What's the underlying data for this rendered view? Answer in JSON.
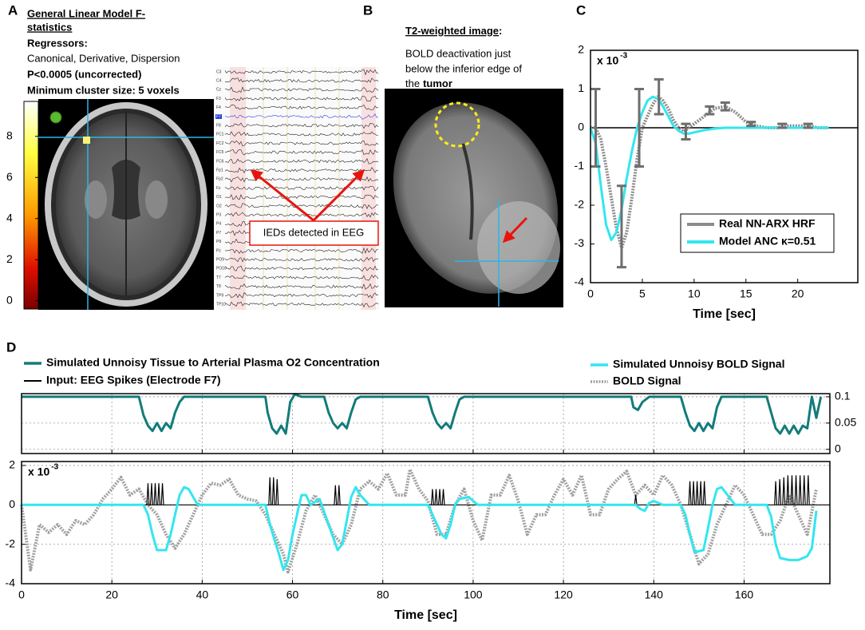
{
  "panels": {
    "A": {
      "label": "A",
      "title_lines": [
        "General Linear Model F-",
        "statistics"
      ],
      "regressors": "Regressors:",
      "regressor_list": "Canonical, Derivative, Dispersion",
      "threshold": "P<0.0005 (uncorrected)",
      "cluster": "Minimum cluster size: 5 voxels",
      "colorbar": {
        "ylim": [
          -0.4,
          9.7
        ],
        "yticks": [
          0,
          2,
          4,
          6,
          8
        ]
      },
      "eeg_channels": [
        "C3",
        "C4",
        "Cz",
        "F3",
        "F4",
        "F7",
        "F8",
        "FC1",
        "FC2",
        "FC5",
        "FC6",
        "Fp1",
        "Fp2",
        "Fz",
        "O1",
        "O2",
        "P3",
        "P4",
        "P7",
        "P8",
        "Pz",
        "PO9",
        "PO10",
        "T7",
        "T8",
        "TP9",
        "TP10"
      ],
      "annotation": "IEDs detected in EEG"
    },
    "B": {
      "label": "B",
      "title": "T2-weighted image",
      "title_suffix": ":",
      "text_lines": [
        "BOLD deactivation just",
        "below the inferior edge of"
      ],
      "last_line": "the",
      "last_bold": "tumor"
    },
    "C": {
      "label": "C"
    },
    "D": {
      "label": "D"
    }
  },
  "chart_data": [
    {
      "type": "line",
      "xlabel": "Time [sec]",
      "exponent_label": "x 10",
      "exponent": "-3",
      "xlim": [
        0,
        25.8
      ],
      "ylim": [
        -4,
        2
      ],
      "xticks": [
        0,
        5,
        10,
        15,
        20
      ],
      "yticks": [
        -4,
        -3,
        -2,
        -1,
        0,
        1,
        2
      ],
      "grid": false,
      "zero_line": true,
      "legend": "lower right",
      "x": [
        0,
        0.5,
        1,
        1.5,
        2,
        2.5,
        3,
        3.5,
        4,
        4.5,
        5,
        5.5,
        6,
        6.5,
        7,
        7.5,
        8,
        8.5,
        9,
        9.5,
        10,
        11,
        12,
        13,
        14,
        15,
        16,
        17,
        18,
        19,
        20,
        21,
        22,
        23
      ],
      "series": [
        {
          "name": "Real NN-ARX HRF",
          "color": "#8c8c8c",
          "style": "dotted",
          "values": [
            0,
            0,
            -0.3,
            -1,
            -1.8,
            -2.6,
            -3.1,
            -2.7,
            -1.8,
            -0.8,
            0,
            0.3,
            0.6,
            0.8,
            0.7,
            0.5,
            0.2,
            0,
            -0.1,
            0,
            0.1,
            0.3,
            0.5,
            0.55,
            0.4,
            0.15,
            0.05,
            0,
            0,
            0.05,
            0.05,
            0.05,
            0,
            0
          ]
        },
        {
          "name": "Model ANC  κ=0.51",
          "color": "#33e6ef",
          "style": "solid",
          "values": [
            0,
            -0.4,
            -1.5,
            -2.5,
            -2.9,
            -2.7,
            -2.1,
            -1.3,
            -0.6,
            0,
            0.4,
            0.7,
            0.8,
            0.75,
            0.55,
            0.3,
            0.05,
            -0.08,
            -0.15,
            -0.15,
            -0.12,
            -0.06,
            -0.02,
            0,
            0,
            0,
            0,
            0,
            0,
            0,
            0,
            0,
            0,
            0
          ]
        }
      ],
      "error_bars": {
        "color": "#6e6e6e",
        "x": [
          0.5,
          3,
          4.7,
          6.6,
          9.2,
          11.5,
          13,
          15.5,
          18.5,
          21
        ],
        "values": [
          0,
          -2.55,
          0,
          0.8,
          -0.1,
          0.45,
          0.55,
          0.1,
          0.05,
          0.05
        ],
        "errors": [
          1,
          1.05,
          1,
          0.45,
          0.2,
          0.1,
          0.1,
          0.05,
          0.05,
          0.05
        ]
      }
    },
    {
      "type": "line",
      "xlim": [
        0,
        179
      ],
      "ylim": [
        -0.008,
        0.106
      ],
      "xticks": [
        0,
        20,
        40,
        60,
        80,
        100,
        120,
        140,
        160
      ],
      "yticks": [
        0,
        0.05,
        0.1
      ],
      "yaxis_side": "right",
      "xtick_labels": false,
      "grid": true,
      "series": [
        {
          "name": "Simulated Unnoisy Tissue to Arterial Plasma O2 Concentration",
          "color": "#137b7b",
          "style": "solid",
          "x": [
            0,
            26,
            27,
            28,
            29,
            30,
            31,
            32,
            33,
            34,
            35,
            36,
            54,
            54.5,
            55.5,
            56.5,
            57.5,
            58.5,
            59.5,
            60.5,
            62,
            67,
            68,
            69,
            70,
            71,
            72,
            73,
            74,
            75,
            90,
            91,
            92,
            93,
            94,
            95,
            96,
            97,
            98,
            135,
            135.5,
            136.5,
            137.5,
            139,
            146,
            147,
            148,
            149,
            150,
            151,
            152,
            153,
            154,
            155,
            165,
            166,
            167,
            168,
            169,
            170,
            171,
            172,
            173,
            174,
            175,
            176,
            177
          ],
          "values": [
            0.1,
            0.1,
            0.065,
            0.045,
            0.035,
            0.05,
            0.035,
            0.05,
            0.04,
            0.07,
            0.09,
            0.1,
            0.1,
            0.07,
            0.04,
            0.03,
            0.045,
            0.03,
            0.09,
            0.105,
            0.1,
            0.1,
            0.07,
            0.05,
            0.04,
            0.05,
            0.04,
            0.07,
            0.095,
            0.1,
            0.1,
            0.07,
            0.05,
            0.04,
            0.05,
            0.04,
            0.07,
            0.095,
            0.1,
            0.1,
            0.08,
            0.075,
            0.09,
            0.1,
            0.1,
            0.07,
            0.045,
            0.035,
            0.05,
            0.035,
            0.05,
            0.04,
            0.08,
            0.1,
            0.1,
            0.07,
            0.04,
            0.03,
            0.045,
            0.03,
            0.045,
            0.03,
            0.045,
            0.04,
            0.1,
            0.06,
            0.1
          ]
        }
      ]
    },
    {
      "type": "line",
      "xlabel": "Time [sec]",
      "exponent_label": "x 10",
      "exponent": "-3",
      "xlim": [
        0,
        179
      ],
      "ylim": [
        -4,
        2.2
      ],
      "xticks": [
        0,
        20,
        40,
        60,
        80,
        100,
        120,
        140,
        160
      ],
      "yticks": [
        -4,
        -2,
        0,
        2
      ],
      "grid": true,
      "series": [
        {
          "name": "BOLD Signal",
          "color": "#a0a0a0",
          "style": "dotted",
          "x": [
            0,
            2,
            4,
            6,
            8,
            10,
            12,
            14,
            16,
            18,
            20,
            22,
            24,
            26,
            28,
            30,
            32,
            34,
            36,
            38,
            40,
            42,
            44,
            46,
            48,
            50,
            52,
            54,
            56,
            58,
            59,
            61,
            63,
            65,
            67,
            69,
            71,
            73,
            75,
            77,
            79,
            81,
            83,
            85,
            86,
            88,
            90,
            92,
            94,
            96,
            98,
            100,
            102,
            104,
            106,
            108,
            110,
            112,
            114,
            116,
            118,
            120,
            122,
            124,
            126,
            128,
            130,
            132,
            134,
            136,
            138,
            140,
            142,
            144,
            146,
            148,
            150,
            152,
            154,
            156,
            158,
            160,
            162,
            164,
            166,
            168,
            170,
            172,
            174,
            176
          ],
          "values": [
            0,
            -3.3,
            -1,
            -1.4,
            -1,
            -1.5,
            -0.8,
            -1,
            -0.5,
            0.3,
            0.8,
            1.4,
            0.5,
            0.8,
            0,
            -0.5,
            -1.5,
            -2.2,
            -1.5,
            -0.5,
            0.5,
            1.1,
            1,
            1.3,
            0.5,
            0.3,
            0.2,
            -0.5,
            -1.5,
            -2.5,
            -3.4,
            -2,
            -0.3,
            0.5,
            -0.5,
            -1.5,
            -2,
            -1,
            0.8,
            1.2,
            0.8,
            1.6,
            0.5,
            0.5,
            1.8,
            0.8,
            0.2,
            -1.5,
            -1.5,
            0,
            0.8,
            -0.8,
            -1.8,
            0.5,
            0.5,
            1.5,
            0.2,
            -1.5,
            -0.5,
            -0.5,
            0.5,
            1.3,
            0.5,
            1.5,
            -0.5,
            -0.5,
            0.8,
            1.3,
            1.7,
            0.5,
            1,
            0.5,
            1.5,
            1,
            0,
            -1.5,
            -3,
            -2.5,
            -1,
            0,
            1,
            0.5,
            -0.5,
            -1.5,
            -1.5,
            -0.8,
            0.5,
            -0.5,
            -1.5,
            0.8
          ]
        },
        {
          "name": "Input: EEG Spikes (Electrode F7)",
          "color": "#000000",
          "style": "spikes",
          "x": [
            28,
            28.8,
            29.6,
            30.4,
            31.2,
            55,
            55.8,
            56.6,
            69.5,
            70.3,
            91,
            91.8,
            92.6,
            93.4,
            136,
            148,
            148.8,
            149.6,
            150.4,
            151.2,
            167,
            167.9,
            168.8,
            169.7,
            170.6,
            171.5,
            172.4,
            173.3,
            174.2
          ],
          "values": [
            1.1,
            1.1,
            1.1,
            1.1,
            1.1,
            1.4,
            1.4,
            1.3,
            1,
            1,
            0.8,
            0.8,
            0.8,
            0.8,
            0.5,
            1.2,
            1.2,
            1.2,
            1.2,
            1.2,
            1.2,
            1.3,
            1.4,
            1.5,
            1.5,
            1.5,
            1.5,
            1.5,
            1.5
          ]
        },
        {
          "name": "Simulated Unnoisy BOLD Signal",
          "color": "#33e6ef",
          "style": "solid",
          "x": [
            0,
            27,
            28,
            29,
            30,
            32,
            33,
            34,
            35,
            36,
            37,
            39,
            54,
            55,
            57,
            58,
            59,
            60,
            61,
            62,
            63,
            64,
            66,
            68,
            70,
            71,
            72,
            73,
            74,
            75,
            77,
            90,
            91,
            93,
            94,
            95,
            96,
            97,
            99,
            101,
            136,
            137,
            138,
            139,
            140,
            142,
            146,
            147,
            148,
            149,
            151,
            152,
            153,
            154,
            155,
            156,
            158,
            165,
            166,
            167,
            168,
            170,
            172,
            174,
            175,
            176
          ],
          "values": [
            0,
            0,
            -0.5,
            -1.5,
            -2.3,
            -2.3,
            -1.5,
            -0.5,
            0.5,
            0.9,
            0.8,
            0,
            0,
            -1,
            -2.5,
            -3.3,
            -2.8,
            -1.5,
            -0.5,
            0.5,
            0.5,
            0,
            0.3,
            -1,
            -2.3,
            -2,
            -0.8,
            0.4,
            0.9,
            0.5,
            0,
            0,
            -0.5,
            -1.5,
            -1.7,
            -1,
            0,
            0.3,
            0.4,
            0,
            0,
            -0.2,
            -0.3,
            0.1,
            0.2,
            0,
            0,
            -0.5,
            -1.5,
            -2.4,
            -2.3,
            -1.2,
            0,
            0.8,
            0.9,
            0.6,
            0,
            0,
            -0.6,
            -2,
            -2.7,
            -2.8,
            -2.8,
            -2.6,
            -2.2,
            -0.3
          ]
        }
      ]
    }
  ]
}
